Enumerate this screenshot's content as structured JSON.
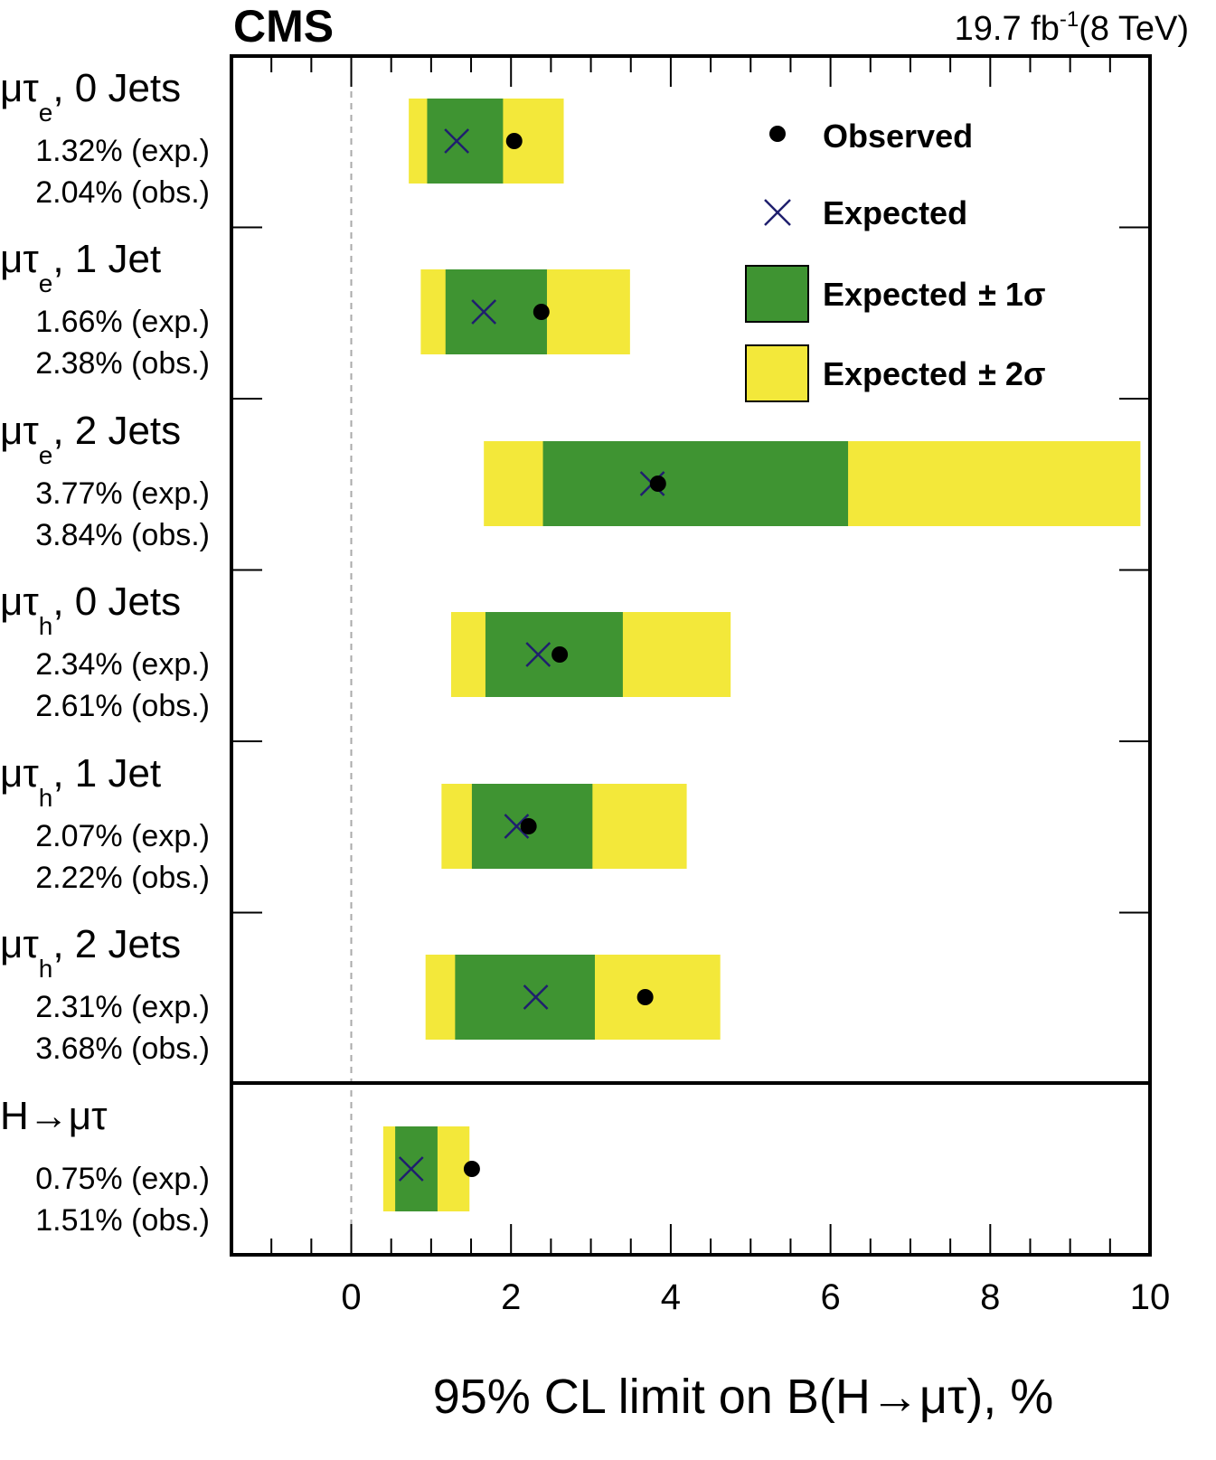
{
  "header": {
    "experiment": "CMS",
    "lumi_value": "19.7 fb",
    "lumi_exp": "-1",
    "lumi_energy": "(8 TeV)"
  },
  "chart_data": {
    "type": "limit-bands",
    "xlabel": "95% CL limit on B(H→μτ), %",
    "xlim": [
      -1.5,
      10
    ],
    "xticks": [
      0,
      2,
      4,
      6,
      8,
      10
    ],
    "x_tick_labels": [
      "0",
      "2",
      "4",
      "6",
      "8",
      "10"
    ],
    "reference_line_x": 0,
    "legend": {
      "position": "top-right",
      "items": [
        {
          "symbol": "dot",
          "label": "Observed"
        },
        {
          "symbol": "cross",
          "label": "Expected"
        },
        {
          "symbol": "box-green",
          "label": "Expected",
          "suffix": "± 1σ"
        },
        {
          "symbol": "box-yellow",
          "label": "Expected",
          "suffix": "± 2σ"
        }
      ]
    },
    "colors": {
      "one_sigma": "#3f9432",
      "two_sigma": "#f3e83a",
      "expected_marker": "#1f1f6e",
      "observed_marker": "#000000"
    },
    "categories": [
      {
        "label": "μτ",
        "sub": "e",
        "suffix": ", 0 Jets",
        "exp_text": "1.32% (exp.)",
        "obs_text": "2.04% (obs.)",
        "expected": 1.32,
        "observed": 2.04,
        "one_sigma": [
          0.95,
          1.9
        ],
        "two_sigma": [
          0.72,
          2.66
        ]
      },
      {
        "label": "μτ",
        "sub": "e",
        "suffix": ", 1 Jet",
        "exp_text": "1.66% (exp.)",
        "obs_text": "2.38% (obs.)",
        "expected": 1.66,
        "observed": 2.38,
        "one_sigma": [
          1.18,
          2.45
        ],
        "two_sigma": [
          0.87,
          3.49
        ]
      },
      {
        "label": "μτ",
        "sub": "e",
        "suffix": ", 2 Jets",
        "exp_text": "3.77% (exp.)",
        "obs_text": "3.84% (obs.)",
        "expected": 3.77,
        "observed": 3.84,
        "one_sigma": [
          2.4,
          6.22
        ],
        "two_sigma": [
          1.66,
          9.88
        ]
      },
      {
        "label": "μτ",
        "sub": "h",
        "suffix": ", 0 Jets",
        "exp_text": "2.34% (exp.)",
        "obs_text": "2.61% (obs.)",
        "expected": 2.34,
        "observed": 2.61,
        "one_sigma": [
          1.68,
          3.4
        ],
        "two_sigma": [
          1.25,
          4.75
        ]
      },
      {
        "label": "μτ",
        "sub": "h",
        "suffix": ", 1 Jet",
        "exp_text": "2.07% (exp.)",
        "obs_text": "2.22% (obs.)",
        "expected": 2.07,
        "observed": 2.22,
        "one_sigma": [
          1.51,
          3.02
        ],
        "two_sigma": [
          1.13,
          4.2
        ]
      },
      {
        "label": "μτ",
        "sub": "h",
        "suffix": ", 2 Jets",
        "exp_text": "2.31% (exp.)",
        "obs_text": "3.68% (obs.)",
        "expected": 2.31,
        "observed": 3.68,
        "one_sigma": [
          1.3,
          3.05
        ],
        "two_sigma": [
          0.93,
          4.62
        ]
      },
      {
        "label": "H→μτ",
        "sub": "",
        "suffix": "",
        "exp_text": "0.75% (exp.)",
        "obs_text": "1.51% (obs.)",
        "expected": 0.75,
        "observed": 1.51,
        "one_sigma": [
          0.55,
          1.08
        ],
        "two_sigma": [
          0.4,
          1.48
        ]
      }
    ]
  }
}
